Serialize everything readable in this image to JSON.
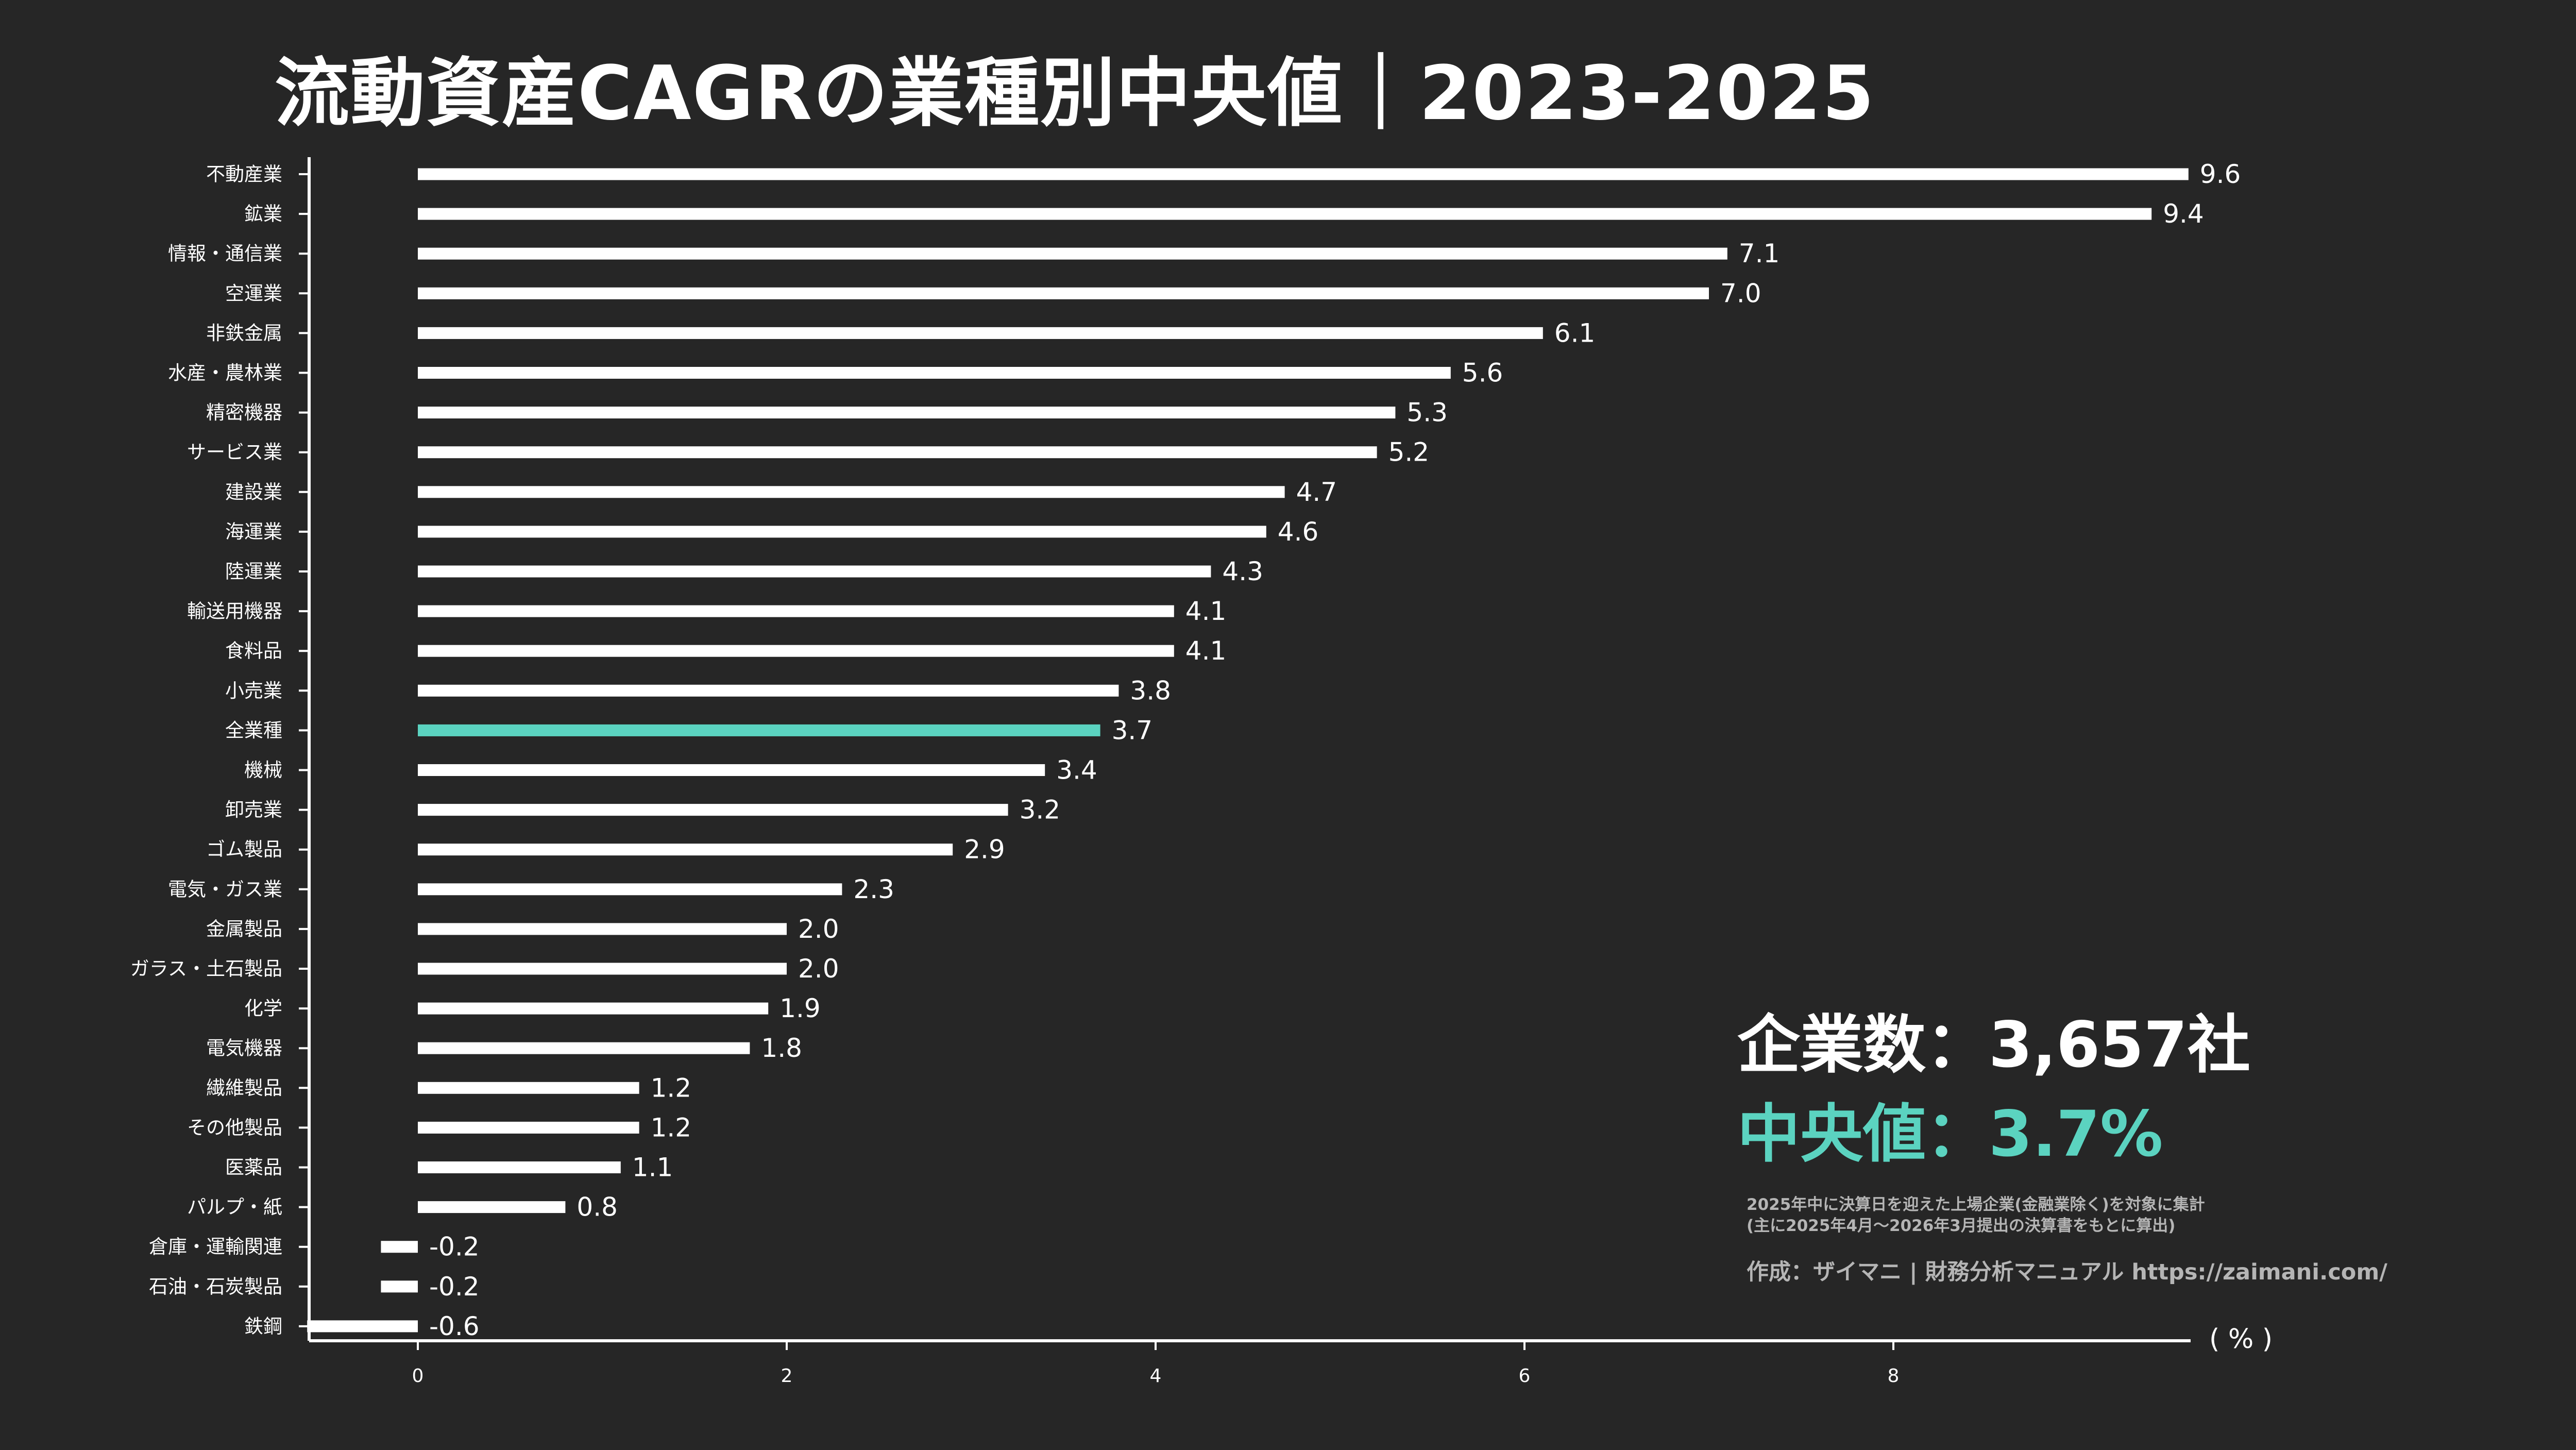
{
  "title": "流動資産CAGRの業種別中央値｜2023-2025",
  "company_count": "企業数：3,657社",
  "median_text": "中央値：3.7%",
  "note_line1": "2025年中に決算日を迎えた上場企業(金融業除く)を対象に集計",
  "note_line2": "(主に2025年4月～2026年3月提出の決算書をもとに算出)",
  "credit": "作成：ザイマニ | 財務分析マニュアル https://zaimani.com/",
  "unit": "( % )",
  "colors": {
    "background": "#262626",
    "bar": "#ffffff",
    "highlight": "#5bd3c0",
    "note": "#b5b5b5"
  },
  "chart_data": {
    "type": "bar",
    "orientation": "horizontal",
    "title": "流動資産CAGRの業種別中央値｜2023-2025",
    "xlabel": "( % )",
    "ylabel": "",
    "xlim": [
      -0.6,
      9.6
    ],
    "xticks": [
      0,
      2,
      4,
      6,
      8
    ],
    "grid": false,
    "highlight_category": "全業種",
    "categories": [
      "不動産業",
      "鉱業",
      "情報・通信業",
      "空運業",
      "非鉄金属",
      "水産・農林業",
      "精密機器",
      "サービス業",
      "建設業",
      "海運業",
      "陸運業",
      "輸送用機器",
      "食料品",
      "小売業",
      "全業種",
      "機械",
      "卸売業",
      "ゴム製品",
      "電気・ガス業",
      "金属製品",
      "ガラス・土石製品",
      "化学",
      "電気機器",
      "繊維製品",
      "その他製品",
      "医薬品",
      "パルプ・紙",
      "倉庫・運輸関連",
      "石油・石炭製品",
      "鉄鋼"
    ],
    "values": [
      9.6,
      9.4,
      7.1,
      7.0,
      6.1,
      5.6,
      5.3,
      5.2,
      4.7,
      4.6,
      4.3,
      4.1,
      4.1,
      3.8,
      3.7,
      3.4,
      3.2,
      2.9,
      2.3,
      2.0,
      2.0,
      1.9,
      1.8,
      1.2,
      1.2,
      1.1,
      0.8,
      -0.2,
      -0.2,
      -0.6
    ],
    "value_labels": [
      "9.6",
      "9.4",
      "7.1",
      "7.0",
      "6.1",
      "5.6",
      "5.3",
      "5.2",
      "4.7",
      "4.6",
      "4.3",
      "4.1",
      "4.1",
      "3.8",
      "3.7",
      "3.4",
      "3.2",
      "2.9",
      "2.3",
      "2.0",
      "2.0",
      "1.9",
      "1.8",
      "1.2",
      "1.2",
      "1.1",
      "0.8",
      "-0.2",
      "-0.2",
      "-0.6"
    ]
  }
}
